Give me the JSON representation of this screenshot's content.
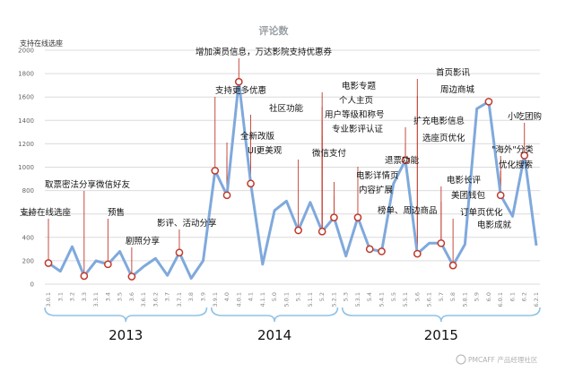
{
  "chart_data": {
    "type": "line",
    "title": "评论数",
    "ylabel": "支持在线选座",
    "ylim": [
      0,
      2000
    ],
    "yticks": [
      0,
      200,
      400,
      600,
      800,
      1000,
      1200,
      1400,
      1600,
      1800,
      2000
    ],
    "grid": true,
    "line_color": "#7fa9dc",
    "marker_fill": "#ffffff",
    "marker_stroke": "#c0392b",
    "x": [
      "3.0.1",
      "3.1",
      "3.2",
      "3.3",
      "3.3.1",
      "3.4",
      "3.5",
      "3.6",
      "3.6.1",
      "3.6.2",
      "3.7",
      "3.7.1",
      "3.8",
      "3.9",
      "3.9.1",
      "4.0",
      "4.0.1",
      "4.1",
      "4.1.1",
      "5.0",
      "5.0.1",
      "5.1",
      "5.1.1",
      "5.2",
      "5.2.1",
      "5.3",
      "5.3.1",
      "5.4",
      "5.4.1",
      "5.5",
      "5.5.1",
      "5.6",
      "5.6.1",
      "5.7",
      "5.8",
      "5.8.1",
      "5.9",
      "6.0",
      "6.0.1",
      "6.1",
      "6.2",
      "6.2.1"
    ],
    "values": [
      180,
      110,
      320,
      70,
      200,
      170,
      280,
      65,
      150,
      220,
      75,
      270,
      50,
      200,
      970,
      760,
      1730,
      860,
      170,
      630,
      710,
      460,
      700,
      450,
      570,
      240,
      570,
      300,
      280,
      860,
      1060,
      260,
      350,
      350,
      160,
      340,
      1500,
      1560,
      760,
      580,
      1100,
      330
    ],
    "markers": [
      0,
      3,
      5,
      7,
      11,
      14,
      15,
      16,
      17,
      21,
      23,
      24,
      26,
      27,
      28,
      30,
      31,
      33,
      34,
      37,
      38,
      40
    ],
    "annotations": [
      {
        "text": "支持在线选座",
        "point": 0
      },
      {
        "text": "取票密法分享微信好友",
        "point": 3
      },
      {
        "text": "预售",
        "point": 5
      },
      {
        "text": "剧照分享",
        "point": 7
      },
      {
        "text": "影评、活动分享",
        "point": 11
      },
      {
        "text": "支持更多优惠",
        "point": 14
      },
      {
        "text": "全新改版",
        "point": 15
      },
      {
        "text": "UI更美观",
        "point": 15
      },
      {
        "text": "增加演员信息，万达影院支持优惠券",
        "point": 16
      },
      {
        "text": "社区功能",
        "point": 17
      },
      {
        "text": "微信支付",
        "point": 21
      },
      {
        "text": "电影专题",
        "point": 23
      },
      {
        "text": "个人主页",
        "point": 23
      },
      {
        "text": "用户等级和称号",
        "point": 23
      },
      {
        "text": "专业影评认证",
        "point": 23
      },
      {
        "text": "电影详情页",
        "point": 24
      },
      {
        "text": "内容扩展",
        "point": 24
      },
      {
        "text": "退票功能",
        "point": 26
      },
      {
        "text": "榜单、周边商品",
        "point": 26
      },
      {
        "text": "扩充电影信息",
        "point": 30
      },
      {
        "text": "选座页优化",
        "point": 30
      },
      {
        "text": "首页影讯",
        "point": 31
      },
      {
        "text": "周边商城",
        "point": 31
      },
      {
        "text": "电影长评",
        "point": 33
      },
      {
        "text": "美团钱包",
        "point": 33
      },
      {
        "text": "订单页优化",
        "point": 34
      },
      {
        "text": "电影成就",
        "point": 37
      },
      {
        "text": "\"海外\"分类",
        "point": 38
      },
      {
        "text": "优化搜索",
        "point": 38
      },
      {
        "text": "小吃团购",
        "point": 40
      }
    ],
    "year_groups": [
      {
        "label": "2013",
        "from": 0,
        "to": 13
      },
      {
        "label": "2014",
        "from": 14,
        "to": 24
      },
      {
        "label": "2015",
        "from": 25,
        "to": 41
      }
    ]
  },
  "watermark": "PMCAFF 产品经理社区"
}
